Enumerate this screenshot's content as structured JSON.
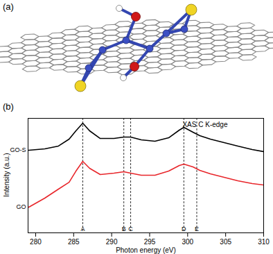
{
  "panels": [
    "(a)",
    "(b)"
  ],
  "chart_data": {
    "type": "line",
    "annotation": "XAS C K-edge",
    "x_label": "Photon energy (eV)",
    "y_label": "Intensity (a.u.)",
    "x": [
      279.1,
      281.2,
      283.0,
      284.4,
      285.3,
      286.2,
      287.1,
      288.5,
      290.3,
      291.6,
      292.5,
      293.9,
      295.7,
      297.5,
      298.9,
      299.5,
      300.7,
      301.6,
      303.0,
      304.8,
      306.6,
      308.5,
      310
    ],
    "series": [
      {
        "name": "GO-S",
        "color": "#000000",
        "values": [
          7.21,
          7.33,
          7.58,
          8.18,
          8.91,
          9.58,
          8.91,
          8.24,
          8.24,
          8.36,
          8.36,
          8.12,
          8.0,
          8.3,
          8.97,
          9.21,
          8.79,
          8.48,
          8.18,
          7.88,
          7.58,
          7.27,
          7.09
        ]
      },
      {
        "name": "GO",
        "color": "#e8262b",
        "values": [
          2.24,
          3.03,
          3.82,
          4.42,
          5.39,
          6.24,
          5.64,
          5.09,
          5.21,
          5.33,
          5.21,
          5.03,
          5.03,
          5.39,
          5.88,
          6.0,
          5.76,
          5.45,
          5.15,
          4.85,
          4.55,
          4.3,
          4.18
        ]
      }
    ],
    "xlim": [
      279,
      310
    ],
    "xticks": [
      280,
      285,
      290,
      295,
      300,
      305,
      310
    ],
    "ylim": [
      0,
      10
    ],
    "tick_labels": "x",
    "markers": [
      {
        "label": "A",
        "x": 286.2
      },
      {
        "label": "B",
        "x": 291.6
      },
      {
        "label": "C",
        "x": 292.5
      },
      {
        "label": "D",
        "x": 299.5
      },
      {
        "label": "E",
        "x": 301.2
      }
    ]
  }
}
